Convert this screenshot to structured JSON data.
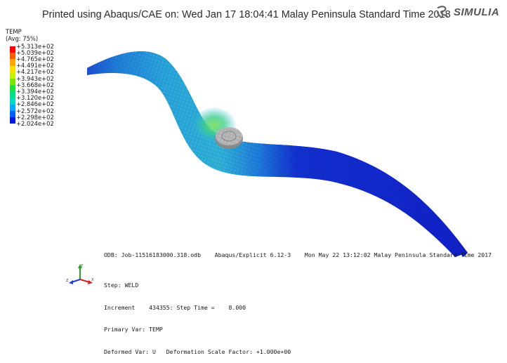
{
  "header": {
    "printed_text": "Printed using Abaqus/CAE on: Wed Jan 17 18:04:41 Malay Peninsula Standard Time 2018"
  },
  "logo": {
    "icon": "3ds-logo-icon",
    "text": "SIMULIA"
  },
  "legend": {
    "title": "TEMP",
    "subtitle": "(Avg: 75%)",
    "values": [
      "+5.313e+02",
      "+5.039e+02",
      "+4.765e+02",
      "+4.491e+02",
      "+4.217e+02",
      "+3.943e+02",
      "+3.668e+02",
      "+3.394e+02",
      "+3.120e+02",
      "+2.846e+02",
      "+2.572e+02",
      "+2.298e+02",
      "+2.024e+02"
    ],
    "colors": [
      "#ff0000",
      "#ff5a00",
      "#ffa500",
      "#ffe000",
      "#c8f000",
      "#78e800",
      "#20e040",
      "#00e088",
      "#00d8c8",
      "#00a8ff",
      "#0060ff",
      "#0018e0"
    ]
  },
  "info": {
    "odb_line": "ODB: Job-11516183000.318.odb    Abaqus/Explicit 6.12-3    Mon May 22 13:12:02 Malay Peninsula Standard Time 2017",
    "step": "Step: WELD",
    "increment": "Increment    434355: Step Time =    8.000",
    "primary_var": "Primary Var: TEMP",
    "deformed_var": "Deformed Var: U   Deformation Scale Factor: +1.000e+00"
  },
  "triad": {
    "icon": "coordinate-triad-icon",
    "x_label": "X",
    "y_label": "Y",
    "z_label": "Z"
  }
}
